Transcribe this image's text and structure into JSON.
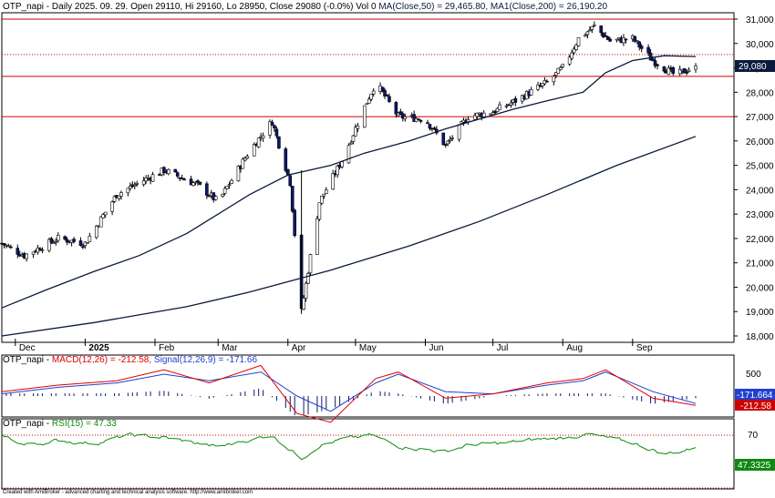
{
  "header": {
    "main": "OTP_napi - Daily 2025. 09. 29. Open 29110, Hi 29160, Lo 28950, Close 29080 (-0.0%) Vol 0 ",
    "ma50": "MA(Close,50) = 29,465.80, ",
    "ma200": "MA1(Close,200) = 26,190.20",
    "macd_prefix": "OTP_napi - ",
    "macd": "MACD(12,26) = -212.58, ",
    "signal": "Signal(12,26,9) = -171.66",
    "rsi_prefix": "OTP_napi - ",
    "rsi": "RSI(15) = 47.33"
  },
  "price_tag": "29,080",
  "macd_tags": {
    "signal": "-171.664",
    "macd": "-212.58"
  },
  "rsi_tag": "47.3325",
  "macd_axis_label": "500",
  "rsi_axis_label": "70",
  "footer": "Created with AmiBroker - advanced charting and technical analysis software. http://www.amibroker.com",
  "colors": {
    "up": "#ffffff",
    "down": "#0a1a6b",
    "outline": "#000000",
    "ma50": "#0a1a3c",
    "ma200": "#0a1a3c",
    "hline": "#cc0000",
    "macd": "#e00000",
    "signal": "#2040d0",
    "hist": "#0a1a6b",
    "rsi": "#118811",
    "rsi_level": "#cc0000"
  },
  "chart_data": [
    {
      "type": "candlestick",
      "title": "OTP_napi - Daily",
      "y_ticks": [
        18000,
        19000,
        20000,
        21000,
        22000,
        23000,
        24000,
        25000,
        26000,
        27000,
        28000,
        29000,
        30000,
        31000
      ],
      "x_ticks": [
        "Dec",
        "2025",
        "Feb",
        "Mar",
        "Apr",
        "May",
        "Jun",
        "Jul",
        "Aug",
        "Sep"
      ],
      "horizontal_lines": [
        31000,
        29550,
        28650,
        27000
      ],
      "last_close": 29080,
      "ma50_points": [
        [
          "2024-11-25",
          19150
        ],
        [
          "2024-12-15",
          19900
        ],
        [
          "2025-01-05",
          20650
        ],
        [
          "2025-01-25",
          21300
        ],
        [
          "2025-02-15",
          22200
        ],
        [
          "2025-03-01",
          23000
        ],
        [
          "2025-03-15",
          23800
        ],
        [
          "2025-04-01",
          24600
        ],
        [
          "2025-04-20",
          25000
        ],
        [
          "2025-05-05",
          25500
        ],
        [
          "2025-05-25",
          26000
        ],
        [
          "2025-06-10",
          26500
        ],
        [
          "2025-06-25",
          26900
        ],
        [
          "2025-07-10",
          27300
        ],
        [
          "2025-07-25",
          27650
        ],
        [
          "2025-08-10",
          28000
        ],
        [
          "2025-08-20",
          28800
        ],
        [
          "2025-09-01",
          29300
        ],
        [
          "2025-09-15",
          29500
        ],
        [
          "2025-09-29",
          29465.8
        ]
      ],
      "ma200_points": [
        [
          "2024-11-25",
          18000
        ],
        [
          "2025-01-05",
          18550
        ],
        [
          "2025-02-15",
          19200
        ],
        [
          "2025-03-15",
          19800
        ],
        [
          "2025-04-20",
          20700
        ],
        [
          "2025-05-25",
          21700
        ],
        [
          "2025-06-25",
          22700
        ],
        [
          "2025-07-25",
          23800
        ],
        [
          "2025-08-25",
          25000
        ],
        [
          "2025-09-29",
          26190.2
        ]
      ],
      "close_path": [
        [
          "2024-11-25",
          21800
        ],
        [
          "2024-12-05",
          21300
        ],
        [
          "2024-12-20",
          22000
        ],
        [
          "2025-01-01",
          21800
        ],
        [
          "2025-01-15",
          23800
        ],
        [
          "2025-01-25",
          24300
        ],
        [
          "2025-02-05",
          24800
        ],
        [
          "2025-02-20",
          24200
        ],
        [
          "2025-03-01",
          23500
        ],
        [
          "2025-03-15",
          25600
        ],
        [
          "2025-03-25",
          26800
        ],
        [
          "2025-04-02",
          24300
        ],
        [
          "2025-04-07",
          19000
        ],
        [
          "2025-04-15",
          23500
        ],
        [
          "2025-04-25",
          25200
        ],
        [
          "2025-05-05",
          27400
        ],
        [
          "2025-05-10",
          28400
        ],
        [
          "2025-05-20",
          27000
        ],
        [
          "2025-06-01",
          26900
        ],
        [
          "2025-06-10",
          25800
        ],
        [
          "2025-06-20",
          27000
        ],
        [
          "2025-07-01",
          27200
        ],
        [
          "2025-07-10",
          27600
        ],
        [
          "2025-07-25",
          28400
        ],
        [
          "2025-08-01",
          29000
        ],
        [
          "2025-08-08",
          30200
        ],
        [
          "2025-08-15",
          30700
        ],
        [
          "2025-08-22",
          30100
        ],
        [
          "2025-09-01",
          30200
        ],
        [
          "2025-09-10",
          29300
        ],
        [
          "2025-09-20",
          28700
        ],
        [
          "2025-09-29",
          29080
        ]
      ]
    },
    {
      "type": "line",
      "title": "MACD(12,26) / Signal(12,26,9)",
      "series": [
        {
          "name": "MACD(12,26)",
          "last": -212.58,
          "values_by_month": [
            [
              "2024-11-25",
              100
            ],
            [
              "2024-12-20",
              250
            ],
            [
              "2025-01-15",
              350
            ],
            [
              "2025-02-05",
              600
            ],
            [
              "2025-02-25",
              300
            ],
            [
              "2025-03-20",
              700
            ],
            [
              "2025-04-05",
              -400
            ],
            [
              "2025-04-20",
              -600
            ],
            [
              "2025-05-10",
              400
            ],
            [
              "2025-05-20",
              550
            ],
            [
              "2025-06-10",
              -50
            ],
            [
              "2025-07-01",
              50
            ],
            [
              "2025-07-25",
              300
            ],
            [
              "2025-08-10",
              400
            ],
            [
              "2025-08-20",
              600
            ],
            [
              "2025-09-10",
              -50
            ],
            [
              "2025-09-29",
              -212.58
            ]
          ]
        },
        {
          "name": "Signal(12,26,9)",
          "last": -171.66,
          "values_by_month": [
            [
              "2024-11-25",
              50
            ],
            [
              "2024-12-20",
              200
            ],
            [
              "2025-01-15",
              300
            ],
            [
              "2025-02-05",
              500
            ],
            [
              "2025-02-25",
              350
            ],
            [
              "2025-03-20",
              550
            ],
            [
              "2025-04-05",
              0
            ],
            [
              "2025-04-20",
              -350
            ],
            [
              "2025-05-10",
              300
            ],
            [
              "2025-05-20",
              500
            ],
            [
              "2025-06-10",
              100
            ],
            [
              "2025-07-01",
              50
            ],
            [
              "2025-07-25",
              250
            ],
            [
              "2025-08-10",
              350
            ],
            [
              "2025-08-20",
              550
            ],
            [
              "2025-09-10",
              100
            ],
            [
              "2025-09-29",
              -171.66
            ]
          ]
        }
      ]
    },
    {
      "type": "line",
      "title": "RSI(15)",
      "level": 70,
      "last": 47.33,
      "values_by_month": [
        [
          "2024-11-25",
          70
        ],
        [
          "2024-12-05",
          52
        ],
        [
          "2024-12-20",
          60
        ],
        [
          "2025-01-05",
          55
        ],
        [
          "2025-01-20",
          70
        ],
        [
          "2025-02-05",
          66
        ],
        [
          "2025-02-20",
          55
        ],
        [
          "2025-03-01",
          48
        ],
        [
          "2025-03-15",
          62
        ],
        [
          "2025-03-25",
          70
        ],
        [
          "2025-04-07",
          28
        ],
        [
          "2025-04-15",
          52
        ],
        [
          "2025-04-25",
          62
        ],
        [
          "2025-05-08",
          70
        ],
        [
          "2025-05-20",
          50
        ],
        [
          "2025-06-10",
          40
        ],
        [
          "2025-06-20",
          52
        ],
        [
          "2025-07-05",
          55
        ],
        [
          "2025-07-20",
          62
        ],
        [
          "2025-08-01",
          65
        ],
        [
          "2025-08-12",
          72
        ],
        [
          "2025-08-20",
          65
        ],
        [
          "2025-09-01",
          56
        ],
        [
          "2025-09-15",
          36
        ],
        [
          "2025-09-22",
          40
        ],
        [
          "2025-09-29",
          47.33
        ]
      ]
    }
  ]
}
